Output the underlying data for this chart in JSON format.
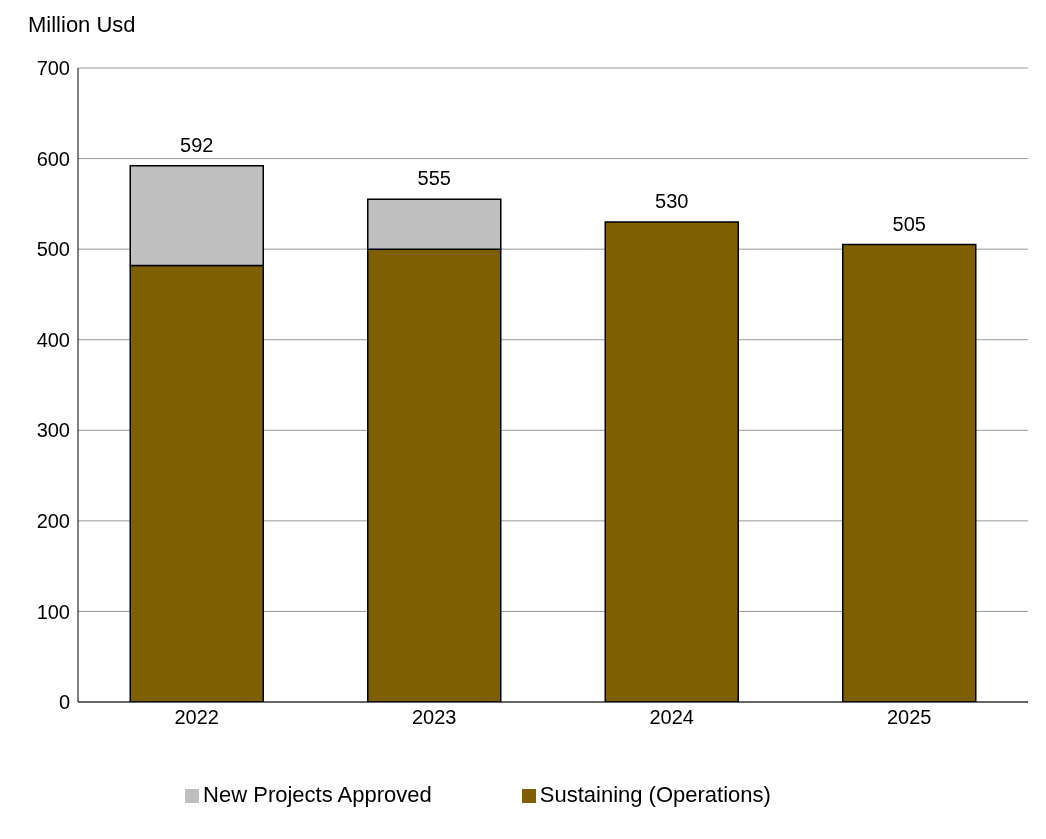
{
  "chart_data": {
    "type": "bar",
    "ylabel": "Million Usd",
    "categories": [
      "2022",
      "2023",
      "2024",
      "2025"
    ],
    "stacked": true,
    "series": [
      {
        "name": "Sustaining (Operations)",
        "color": "#7f6000",
        "values": [
          482,
          500,
          530,
          505
        ]
      },
      {
        "name": "New Projects Approved",
        "color": "#c0c0c0",
        "values": [
          110,
          55,
          null,
          null
        ]
      }
    ],
    "totals": [
      "592",
      "555",
      "530",
      "505"
    ],
    "ylim": [
      0,
      700
    ],
    "yticks": [
      0,
      100,
      200,
      300,
      400,
      500,
      600,
      700
    ],
    "grid": "y",
    "legend": "bottom"
  }
}
